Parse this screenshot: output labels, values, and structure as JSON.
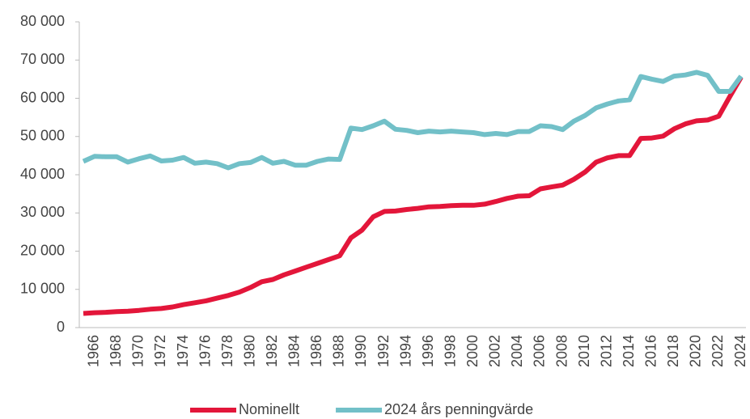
{
  "chart_data": {
    "type": "line",
    "categories": [
      null,
      "1966",
      null,
      "1968",
      null,
      "1970",
      null,
      "1972",
      null,
      "1974",
      null,
      "1976",
      null,
      "1978",
      null,
      "1980",
      null,
      "1982",
      null,
      "1984",
      null,
      "1986",
      null,
      "1988",
      null,
      "1990",
      null,
      "1992",
      null,
      "1994",
      null,
      "1996",
      null,
      "1998",
      null,
      "2000",
      null,
      "2002",
      null,
      "2004",
      null,
      "2006",
      null,
      "2008",
      null,
      "2010",
      null,
      "2012",
      null,
      "2014",
      null,
      "2016",
      null,
      "2018",
      null,
      "2020",
      null,
      "2022",
      null,
      "2024"
    ],
    "series": [
      {
        "name": "Nominellt",
        "color": "#e3163a",
        "values": [
          3700,
          3900,
          4000,
          4200,
          4300,
          4500,
          4800,
          5000,
          5400,
          6000,
          6500,
          7000,
          7700,
          8400,
          9300,
          10500,
          12000,
          12600,
          13800,
          14800,
          15800,
          16800,
          17800,
          18800,
          23500,
          25500,
          29000,
          30400,
          30500,
          30900,
          31200,
          31600,
          31700,
          31900,
          32000,
          32000,
          32300,
          33000,
          33800,
          34400,
          34500,
          36300,
          36800,
          37300,
          38800,
          40700,
          43300,
          44400,
          45000,
          45000,
          49500,
          49600,
          50100,
          52000,
          53300,
          54100,
          54300,
          55300,
          60500,
          65500
        ]
      },
      {
        "name": "2024 års penningvärde",
        "color": "#72c0c8",
        "values": [
          43500,
          44800,
          44700,
          44700,
          43300,
          44200,
          44900,
          43600,
          43800,
          44500,
          43000,
          43300,
          42900,
          41800,
          42900,
          43200,
          44500,
          43000,
          43500,
          42500,
          42500,
          43500,
          44100,
          44000,
          52200,
          51800,
          52800,
          54000,
          51900,
          51600,
          51000,
          51400,
          51200,
          51400,
          51200,
          51000,
          50500,
          50800,
          50500,
          51300,
          51300,
          52800,
          52600,
          51800,
          54000,
          55500,
          57500,
          58500,
          59300,
          59600,
          65700,
          65000,
          64400,
          65800,
          66100,
          66800,
          66000,
          61800,
          61800,
          65800
        ]
      }
    ],
    "ylim": [
      0,
      80000
    ],
    "yticks": [
      0,
      {
        "value": 10000,
        "label": "10 000"
      },
      {
        "value": 20000,
        "label": "20 000"
      },
      {
        "value": 30000,
        "label": "30 000"
      },
      {
        "value": 40000,
        "label": "40 000"
      },
      {
        "value": 50000,
        "label": "50 000"
      },
      {
        "value": 60000,
        "label": "60 000"
      },
      {
        "value": 70000,
        "label": "70 000"
      },
      {
        "value": 80000,
        "label": "80 000"
      }
    ],
    "grid": false,
    "legend": "bottom"
  }
}
